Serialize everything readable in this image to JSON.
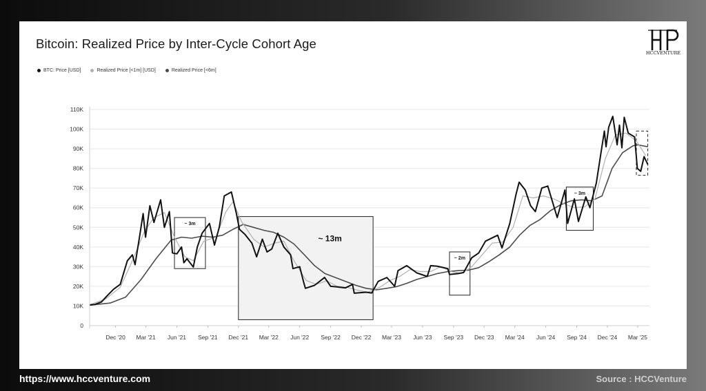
{
  "title": "Bitcoin: Realized Price by Inter-Cycle Cohort Age",
  "logo": {
    "text": "HCCVENTURE",
    "icon": "hcc-monogram-logo"
  },
  "footer": {
    "url": "https://www.hccventure.com",
    "source": "Source : HCCVenture"
  },
  "colors": {
    "price": "#111111",
    "rp1m": "#b0b0b0",
    "rp6m": "#4a4a4a",
    "box_fill": "#f2f2f2"
  },
  "chart_data": {
    "type": "line",
    "title": "Bitcoin: Realized Price by Inter-Cycle Cohort Age",
    "xlabel": "",
    "ylabel": "",
    "ylim": [
      0,
      110000
    ],
    "yticks": [
      0,
      10000,
      20000,
      30000,
      40000,
      50000,
      60000,
      70000,
      80000,
      90000,
      100000,
      110000
    ],
    "ytick_labels": [
      "0",
      "10K",
      "20K",
      "30K",
      "40K",
      "50K",
      "60K",
      "70K",
      "80K",
      "90K",
      "100K",
      "110K"
    ],
    "xlim": [
      "2020-09-15",
      "2025-04-05"
    ],
    "xticks": [
      "2020-12-01",
      "2021-03-01",
      "2021-06-01",
      "2021-09-01",
      "2021-12-01",
      "2022-03-01",
      "2022-06-01",
      "2022-09-01",
      "2022-12-01",
      "2023-03-01",
      "2023-06-01",
      "2023-09-01",
      "2023-12-01",
      "2024-03-01",
      "2024-06-01",
      "2024-09-01",
      "2024-12-01",
      "2025-03-01"
    ],
    "xtick_labels": [
      "Dec '20",
      "Mar '21",
      "Jun '21",
      "Sep '21",
      "Dec '21",
      "Mar '22",
      "Jun '22",
      "Sep '22",
      "Dec '22",
      "Mar '23",
      "Jun '23",
      "Sep '23",
      "Dec '23",
      "Mar '24",
      "Jun '24",
      "Sep '24",
      "Dec '24",
      "Mar '25"
    ],
    "grid": true,
    "legend_position": "top-left",
    "series": [
      {
        "name": "BTC: Price [USD]",
        "points": [
          [
            "2020-09-15",
            10500
          ],
          [
            "2020-10-01",
            10800
          ],
          [
            "2020-10-20",
            12000
          ],
          [
            "2020-11-05",
            15000
          ],
          [
            "2020-11-25",
            18500
          ],
          [
            "2020-12-15",
            21000
          ],
          [
            "2021-01-05",
            33000
          ],
          [
            "2021-01-20",
            36000
          ],
          [
            "2021-01-28",
            31000
          ],
          [
            "2021-02-10",
            45000
          ],
          [
            "2021-02-21",
            57000
          ],
          [
            "2021-02-28",
            45000
          ],
          [
            "2021-03-13",
            61000
          ],
          [
            "2021-03-25",
            52500
          ],
          [
            "2021-04-14",
            64000
          ],
          [
            "2021-04-25",
            50000
          ],
          [
            "2021-05-10",
            58000
          ],
          [
            "2021-05-19",
            37000
          ],
          [
            "2021-06-01",
            36500
          ],
          [
            "2021-06-15",
            40000
          ],
          [
            "2021-06-22",
            32000
          ],
          [
            "2021-07-01",
            34000
          ],
          [
            "2021-07-20",
            29800
          ],
          [
            "2021-08-01",
            40000
          ],
          [
            "2021-08-15",
            47000
          ],
          [
            "2021-09-06",
            52000
          ],
          [
            "2021-09-21",
            41000
          ],
          [
            "2021-10-05",
            50000
          ],
          [
            "2021-10-20",
            66000
          ],
          [
            "2021-11-10",
            68000
          ],
          [
            "2021-11-25",
            57000
          ],
          [
            "2021-12-04",
            49000
          ],
          [
            "2021-12-20",
            46500
          ],
          [
            "2022-01-10",
            42000
          ],
          [
            "2022-01-24",
            35000
          ],
          [
            "2022-02-10",
            44000
          ],
          [
            "2022-02-24",
            37500
          ],
          [
            "2022-03-10",
            39000
          ],
          [
            "2022-03-28",
            47000
          ],
          [
            "2022-04-15",
            40000
          ],
          [
            "2022-05-05",
            36000
          ],
          [
            "2022-05-12",
            29000
          ],
          [
            "2022-06-01",
            30000
          ],
          [
            "2022-06-13",
            22000
          ],
          [
            "2022-06-18",
            19000
          ],
          [
            "2022-07-15",
            20500
          ],
          [
            "2022-08-14",
            24500
          ],
          [
            "2022-09-01",
            20000
          ],
          [
            "2022-09-15",
            19800
          ],
          [
            "2022-10-15",
            19200
          ],
          [
            "2022-11-05",
            21000
          ],
          [
            "2022-11-10",
            16500
          ],
          [
            "2022-12-15",
            17000
          ],
          [
            "2023-01-01",
            16600
          ],
          [
            "2023-01-20",
            22500
          ],
          [
            "2023-02-15",
            24500
          ],
          [
            "2023-03-10",
            20000
          ],
          [
            "2023-03-20",
            28000
          ],
          [
            "2023-04-15",
            30500
          ],
          [
            "2023-05-15",
            26800
          ],
          [
            "2023-06-15",
            25000
          ],
          [
            "2023-06-25",
            30500
          ],
          [
            "2023-07-15",
            30200
          ],
          [
            "2023-08-15",
            29000
          ],
          [
            "2023-08-20",
            26000
          ],
          [
            "2023-09-15",
            26500
          ],
          [
            "2023-10-01",
            27000
          ],
          [
            "2023-10-25",
            34500
          ],
          [
            "2023-11-15",
            37000
          ],
          [
            "2023-12-05",
            43000
          ],
          [
            "2024-01-10",
            46000
          ],
          [
            "2024-01-23",
            39500
          ],
          [
            "2024-02-15",
            52000
          ],
          [
            "2024-03-05",
            67000
          ],
          [
            "2024-03-14",
            73000
          ],
          [
            "2024-04-01",
            69000
          ],
          [
            "2024-04-17",
            61000
          ],
          [
            "2024-05-01",
            58000
          ],
          [
            "2024-05-20",
            70000
          ],
          [
            "2024-06-07",
            71000
          ],
          [
            "2024-07-05",
            55000
          ],
          [
            "2024-07-28",
            69000
          ],
          [
            "2024-08-05",
            52000
          ],
          [
            "2024-08-25",
            64500
          ],
          [
            "2024-09-06",
            53000
          ],
          [
            "2024-09-28",
            65500
          ],
          [
            "2024-10-10",
            60000
          ],
          [
            "2024-10-29",
            72500
          ],
          [
            "2024-11-12",
            88000
          ],
          [
            "2024-11-22",
            99000
          ],
          [
            "2024-11-27",
            91000
          ],
          [
            "2024-12-05",
            101000
          ],
          [
            "2024-12-17",
            106500
          ],
          [
            "2024-12-30",
            92000
          ],
          [
            "2025-01-06",
            102000
          ],
          [
            "2025-01-13",
            90500
          ],
          [
            "2025-01-20",
            106000
          ],
          [
            "2025-02-01",
            98000
          ],
          [
            "2025-02-20",
            96000
          ],
          [
            "2025-02-28",
            80000
          ],
          [
            "2025-03-10",
            78500
          ],
          [
            "2025-03-20",
            86000
          ],
          [
            "2025-03-31",
            82000
          ]
        ]
      },
      {
        "name": "Realized Price [<1m] [USD]",
        "points": [
          [
            "2020-09-15",
            10600
          ],
          [
            "2020-11-01",
            13500
          ],
          [
            "2020-12-15",
            19500
          ],
          [
            "2021-01-20",
            33000
          ],
          [
            "2021-02-25",
            48000
          ],
          [
            "2021-03-25",
            55000
          ],
          [
            "2021-04-25",
            57500
          ],
          [
            "2021-05-25",
            45000
          ],
          [
            "2021-06-25",
            35000
          ],
          [
            "2021-07-20",
            33000
          ],
          [
            "2021-08-20",
            43000
          ],
          [
            "2021-09-25",
            45000
          ],
          [
            "2021-10-25",
            58000
          ],
          [
            "2021-11-15",
            63000
          ],
          [
            "2021-12-10",
            53000
          ],
          [
            "2022-01-15",
            44000
          ],
          [
            "2022-02-15",
            40000
          ],
          [
            "2022-03-20",
            42000
          ],
          [
            "2022-04-15",
            43000
          ],
          [
            "2022-05-15",
            33000
          ],
          [
            "2022-06-20",
            23000
          ],
          [
            "2022-07-20",
            21000
          ],
          [
            "2022-08-20",
            22800
          ],
          [
            "2022-09-20",
            20000
          ],
          [
            "2022-10-20",
            19500
          ],
          [
            "2022-11-20",
            18000
          ],
          [
            "2022-12-20",
            17000
          ],
          [
            "2023-01-25",
            19500
          ],
          [
            "2023-02-25",
            23000
          ],
          [
            "2023-03-25",
            25000
          ],
          [
            "2023-04-25",
            28500
          ],
          [
            "2023-05-25",
            27500
          ],
          [
            "2023-06-25",
            27500
          ],
          [
            "2023-07-25",
            30000
          ],
          [
            "2023-08-25",
            27500
          ],
          [
            "2023-09-25",
            26600
          ],
          [
            "2023-10-25",
            30000
          ],
          [
            "2023-11-25",
            36000
          ],
          [
            "2023-12-25",
            42000
          ],
          [
            "2024-01-25",
            42500
          ],
          [
            "2024-02-25",
            50000
          ],
          [
            "2024-03-25",
            66000
          ],
          [
            "2024-04-25",
            65000
          ],
          [
            "2024-05-25",
            66000
          ],
          [
            "2024-06-25",
            64500
          ],
          [
            "2024-07-25",
            62000
          ],
          [
            "2024-08-25",
            60000
          ],
          [
            "2024-09-25",
            60500
          ],
          [
            "2024-10-25",
            64500
          ],
          [
            "2024-11-25",
            85000
          ],
          [
            "2024-12-25",
            97000
          ],
          [
            "2025-01-25",
            98000
          ],
          [
            "2025-02-25",
            94000
          ],
          [
            "2025-03-25",
            86500
          ]
        ]
      },
      {
        "name": "Realized Price [<6m]",
        "points": [
          [
            "2020-09-15",
            10400
          ],
          [
            "2020-11-15",
            11500
          ],
          [
            "2020-12-31",
            14500
          ],
          [
            "2021-02-15",
            23500
          ],
          [
            "2021-03-31",
            34000
          ],
          [
            "2021-05-15",
            43500
          ],
          [
            "2021-06-15",
            45000
          ],
          [
            "2021-07-15",
            44500
          ],
          [
            "2021-08-15",
            45500
          ],
          [
            "2021-09-15",
            45000
          ],
          [
            "2021-10-15",
            46000
          ],
          [
            "2021-11-15",
            49000
          ],
          [
            "2021-12-15",
            51500
          ],
          [
            "2022-01-15",
            50000
          ],
          [
            "2022-02-15",
            48500
          ],
          [
            "2022-03-15",
            47500
          ],
          [
            "2022-04-15",
            45000
          ],
          [
            "2022-05-15",
            41500
          ],
          [
            "2022-06-15",
            36000
          ],
          [
            "2022-07-15",
            30500
          ],
          [
            "2022-08-15",
            26500
          ],
          [
            "2022-09-15",
            24500
          ],
          [
            "2022-10-15",
            22500
          ],
          [
            "2022-11-15",
            20500
          ],
          [
            "2022-12-15",
            19000
          ],
          [
            "2023-01-15",
            18200
          ],
          [
            "2023-02-15",
            19000
          ],
          [
            "2023-03-15",
            19800
          ],
          [
            "2023-04-15",
            21500
          ],
          [
            "2023-05-15",
            23500
          ],
          [
            "2023-06-15",
            25000
          ],
          [
            "2023-07-15",
            26500
          ],
          [
            "2023-08-15",
            27500
          ],
          [
            "2023-09-15",
            28000
          ],
          [
            "2023-10-15",
            28200
          ],
          [
            "2023-11-15",
            29500
          ],
          [
            "2023-12-15",
            32500
          ],
          [
            "2024-01-15",
            36000
          ],
          [
            "2024-02-15",
            40000
          ],
          [
            "2024-03-15",
            46000
          ],
          [
            "2024-04-15",
            51000
          ],
          [
            "2024-05-15",
            54000
          ],
          [
            "2024-06-15",
            58500
          ],
          [
            "2024-07-15",
            61500
          ],
          [
            "2024-08-15",
            63500
          ],
          [
            "2024-09-15",
            64000
          ],
          [
            "2024-10-15",
            63500
          ],
          [
            "2024-11-15",
            66000
          ],
          [
            "2024-12-15",
            80000
          ],
          [
            "2025-01-15",
            88000
          ],
          [
            "2025-02-15",
            91500
          ],
          [
            "2025-03-01",
            92000
          ],
          [
            "2025-03-31",
            91000
          ]
        ]
      }
    ],
    "annotations": [
      {
        "label": "~ 3m",
        "x0": "2021-05-25",
        "x1": "2021-08-25",
        "y0": 29000,
        "y1": 55000,
        "filled": false,
        "dashed": false,
        "big": false
      },
      {
        "label": "~ 13m",
        "x0": "2021-12-01",
        "x1": "2023-01-05",
        "y0": 3000,
        "y1": 55500,
        "filled": true,
        "dashed": false,
        "big": true
      },
      {
        "label": "~ 2m",
        "x0": "2023-08-20",
        "x1": "2023-10-20",
        "y0": 15500,
        "y1": 37500,
        "filled": false,
        "dashed": false,
        "big": false
      },
      {
        "label": "~ 3m",
        "x0": "2024-08-01",
        "x1": "2024-10-20",
        "y0": 48500,
        "y1": 70500,
        "filled": false,
        "dashed": false,
        "big": false
      },
      {
        "label": "",
        "x0": "2025-02-25",
        "x1": "2025-03-31",
        "y0": 76500,
        "y1": 99000,
        "filled": false,
        "dashed": true,
        "big": false
      }
    ]
  }
}
